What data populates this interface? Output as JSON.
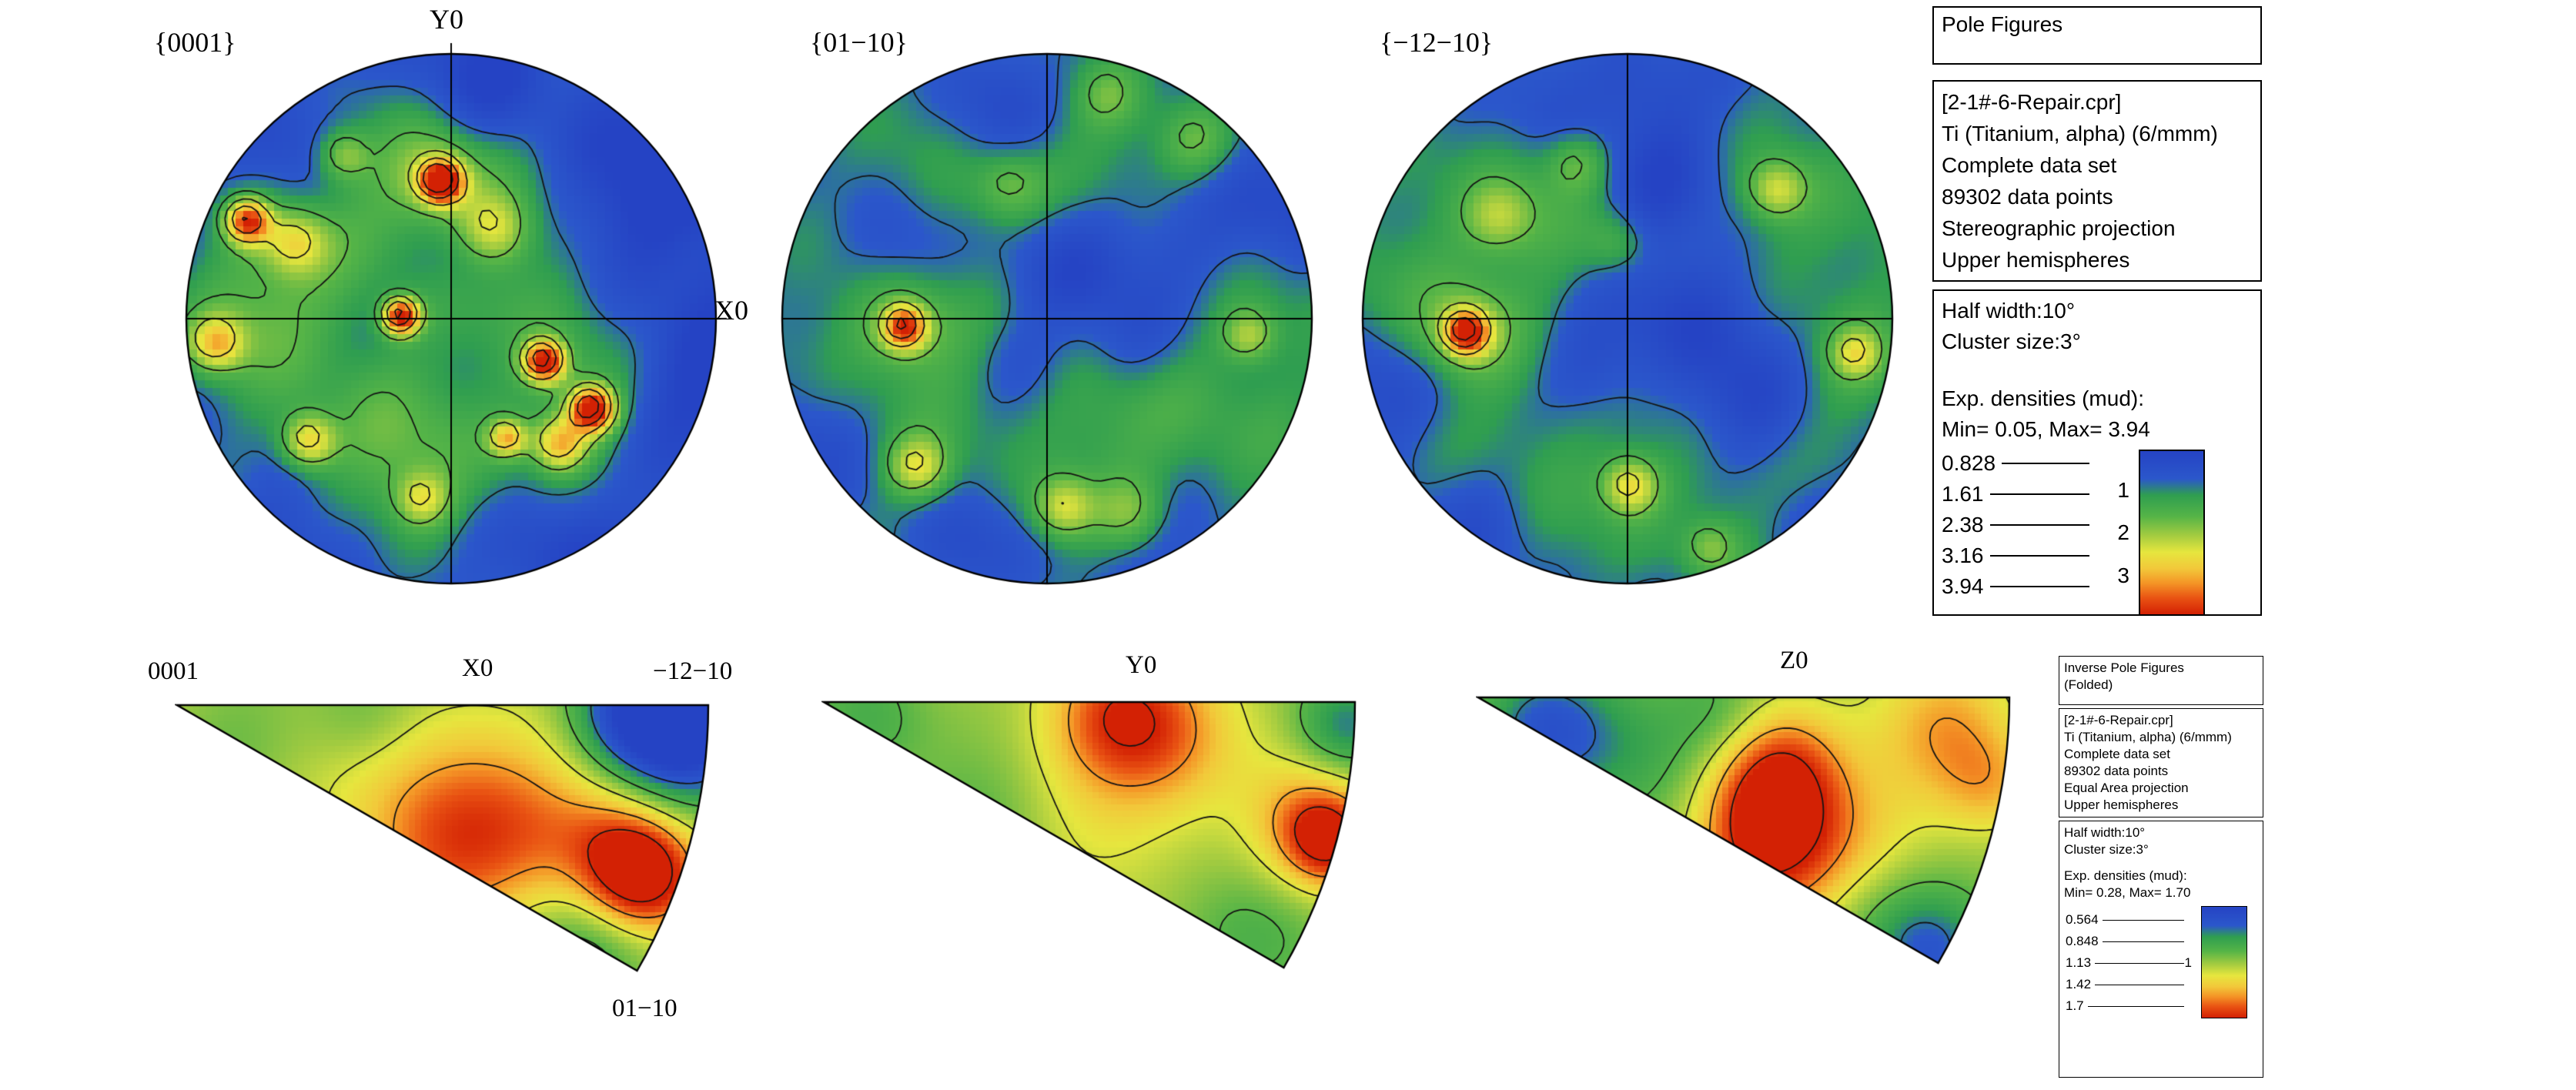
{
  "figures": {
    "pf1_label": "{0001}",
    "pf2_label": "{01−10}",
    "pf3_label": "{−12−10}",
    "axis_y": "Y0",
    "axis_x": "X0",
    "ipf1_title": "X0",
    "ipf2_title": "Y0",
    "ipf3_title": "Z0",
    "ipf_corner_apex": "0001",
    "ipf_corner_right": "−12−10",
    "ipf_corner_bottom": "01−10"
  },
  "pole_figures_panel": {
    "title": "Pole Figures",
    "dataset": [
      "[2-1#-6-Repair.cpr]",
      "Ti (Titanium, alpha) (6/mmm)",
      "Complete data set",
      "89302 data points",
      "Stereographic projection",
      "Upper hemispheres"
    ],
    "half_width": "Half width:10°",
    "cluster_size": "Cluster size:3°",
    "densities_label": "Exp. densities (mud):",
    "min_max": "Min= 0.05, Max= 3.94",
    "levels": [
      "0.828",
      "1.61",
      "2.38",
      "3.16",
      "3.94"
    ],
    "colorbar_ticks": [
      "1",
      "2",
      "3"
    ]
  },
  "ipf_panel": {
    "title_line1": "Inverse Pole Figures",
    "title_line2": "(Folded)",
    "dataset": [
      "[2-1#-6-Repair.cpr]",
      "Ti (Titanium, alpha) (6/mmm)",
      "Complete data set",
      "89302 data points",
      "Equal Area projection",
      "Upper hemispheres"
    ],
    "half_width": "Half width:10°",
    "cluster_size": "Cluster size:3°",
    "densities_label": "Exp. densities (mud):",
    "min_max": "Min= 0.28, Max= 1.70",
    "levels": [
      "0.564",
      "0.848",
      "1.13",
      "1.42",
      "1.7"
    ],
    "colorbar_ticks": [
      "1"
    ]
  },
  "colors": {
    "background": "#ffffff",
    "contour_line": "#141414",
    "outline": "#000000",
    "colormap_stops": [
      [
        0.0,
        "#2543c4"
      ],
      [
        0.17,
        "#2b57cb"
      ],
      [
        0.27,
        "#2f9e50"
      ],
      [
        0.4,
        "#55b447"
      ],
      [
        0.52,
        "#a5cc40"
      ],
      [
        0.62,
        "#e6e63e"
      ],
      [
        0.72,
        "#f2c83a"
      ],
      [
        0.81,
        "#f49426"
      ],
      [
        0.9,
        "#e95313"
      ],
      [
        1.0,
        "#d32104"
      ]
    ]
  },
  "chart_data": [
    {
      "id": "pf_0001",
      "type": "heatmap",
      "plot": "pole-figure-contour",
      "title": "{0001}",
      "projection": "Stereographic",
      "hemisphere": "Upper",
      "units": "mud",
      "range": {
        "min": 0.05,
        "max": 3.94
      },
      "contour_levels": [
        0.828,
        1.61,
        2.38,
        3.16,
        3.94
      ],
      "base": 0.5,
      "noise": 0.28,
      "noise_phase": 0,
      "peaks": [
        {
          "x": -0.55,
          "y": -0.25,
          "a": 0.8,
          "s": 0.3
        },
        {
          "x": -0.15,
          "y": -0.6,
          "a": 0.7,
          "s": 0.22
        },
        {
          "x": 0.25,
          "y": -0.2,
          "a": 0.8,
          "s": 0.26
        },
        {
          "x": 0.45,
          "y": 0.35,
          "a": 0.8,
          "s": 0.26
        },
        {
          "x": -0.35,
          "y": 0.45,
          "a": 0.8,
          "s": 0.28
        },
        {
          "x": -0.05,
          "y": 0.65,
          "a": 0.6,
          "s": 0.24
        },
        {
          "x": -0.85,
          "y": 0.0,
          "a": 0.7,
          "s": 0.22
        },
        {
          "x": 0.75,
          "y": -0.45,
          "a": -0.75,
          "s": 0.24
        },
        {
          "x": 0.88,
          "y": 0.25,
          "a": -0.6,
          "s": 0.2
        },
        {
          "x": 0.35,
          "y": 0.78,
          "a": -0.55,
          "s": 0.2
        },
        {
          "x": -0.5,
          "y": 0.82,
          "a": -0.5,
          "s": 0.18
        },
        {
          "x": 0.1,
          "y": -0.92,
          "a": -0.5,
          "s": 0.16
        },
        {
          "x": -0.55,
          "y": -0.62,
          "a": -0.45,
          "s": 0.16
        },
        {
          "x": 0.02,
          "y": -0.25,
          "a": -0.5,
          "s": 0.13
        },
        {
          "x": -0.05,
          "y": -0.53,
          "a": 3.2,
          "s": 0.055
        },
        {
          "x": -0.05,
          "y": -0.53,
          "a": 0.9,
          "s": 0.13
        },
        {
          "x": -0.78,
          "y": -0.38,
          "a": 2.7,
          "s": 0.06
        },
        {
          "x": -0.6,
          "y": -0.3,
          "a": 1.2,
          "s": 0.08
        },
        {
          "x": -0.2,
          "y": -0.02,
          "a": 3.1,
          "s": 0.05
        },
        {
          "x": 0.34,
          "y": 0.15,
          "a": 3.1,
          "s": 0.055
        },
        {
          "x": 0.52,
          "y": 0.33,
          "a": 3.3,
          "s": 0.06
        },
        {
          "x": 0.4,
          "y": 0.46,
          "a": 1.8,
          "s": 0.07
        },
        {
          "x": -0.55,
          "y": 0.45,
          "a": 1.7,
          "s": 0.07
        },
        {
          "x": 0.2,
          "y": 0.44,
          "a": 1.8,
          "s": 0.05
        },
        {
          "x": -0.9,
          "y": 0.08,
          "a": 1.6,
          "s": 0.07
        },
        {
          "x": -0.42,
          "y": -0.63,
          "a": 1.1,
          "s": 0.07
        },
        {
          "x": 0.15,
          "y": -0.35,
          "a": 1.2,
          "s": 0.09
        },
        {
          "x": -0.12,
          "y": 0.67,
          "a": 1.2,
          "s": 0.07
        }
      ]
    },
    {
      "id": "pf_0110",
      "type": "heatmap",
      "plot": "pole-figure-contour",
      "title": "{01−10}",
      "projection": "Stereographic",
      "hemisphere": "Upper",
      "units": "mud",
      "range": {
        "min": 0.05,
        "max": 3.94
      },
      "contour_levels": [
        0.828,
        1.61,
        2.38,
        3.16,
        3.94
      ],
      "base": 0.8,
      "noise": 0.26,
      "noise_phase": 2.1,
      "peaks": [
        {
          "x": -0.6,
          "y": 0.15,
          "a": 0.5,
          "s": 0.28
        },
        {
          "x": 0.3,
          "y": -0.55,
          "a": 0.5,
          "s": 0.26
        },
        {
          "x": -0.35,
          "y": -0.5,
          "a": 0.45,
          "s": 0.24
        },
        {
          "x": 0.1,
          "y": 0.35,
          "a": 0.45,
          "s": 0.26
        },
        {
          "x": 0.6,
          "y": 0.45,
          "a": 0.5,
          "s": 0.25
        },
        {
          "x": 0.78,
          "y": -0.05,
          "a": 0.4,
          "s": 0.2
        },
        {
          "x": 0.05,
          "y": -0.25,
          "a": -0.75,
          "s": 0.18
        },
        {
          "x": 0.5,
          "y": -0.28,
          "a": -0.6,
          "s": 0.18
        },
        {
          "x": -0.2,
          "y": -0.78,
          "a": -0.55,
          "s": 0.16
        },
        {
          "x": 0.85,
          "y": -0.5,
          "a": -0.55,
          "s": 0.18
        },
        {
          "x": -0.58,
          "y": -0.3,
          "a": -0.55,
          "s": 0.15
        },
        {
          "x": -0.9,
          "y": 0.42,
          "a": -0.5,
          "s": 0.18
        },
        {
          "x": 0.32,
          "y": 0.08,
          "a": -0.5,
          "s": 0.14
        },
        {
          "x": -0.12,
          "y": 0.14,
          "a": -0.45,
          "s": 0.13
        },
        {
          "x": 0.55,
          "y": 0.8,
          "a": -0.4,
          "s": 0.16
        },
        {
          "x": -0.3,
          "y": 0.85,
          "a": -0.35,
          "s": 0.15
        },
        {
          "x": -0.55,
          "y": 0.02,
          "a": 2.3,
          "s": 0.055
        },
        {
          "x": -0.55,
          "y": 0.02,
          "a": 0.8,
          "s": 0.12
        },
        {
          "x": -0.5,
          "y": 0.55,
          "a": 1.4,
          "s": 0.08
        },
        {
          "x": 0.05,
          "y": 0.7,
          "a": 1.3,
          "s": 0.08
        },
        {
          "x": 0.75,
          "y": 0.05,
          "a": 1.1,
          "s": 0.07
        },
        {
          "x": 0.3,
          "y": 0.72,
          "a": 0.8,
          "s": 0.09
        },
        {
          "x": -0.15,
          "y": -0.52,
          "a": 0.7,
          "s": 0.09
        },
        {
          "x": 0.55,
          "y": -0.68,
          "a": 0.7,
          "s": 0.09
        },
        {
          "x": 0.22,
          "y": -0.85,
          "a": 0.6,
          "s": 0.08
        }
      ]
    },
    {
      "id": "pf_1210",
      "type": "heatmap",
      "plot": "pole-figure-contour",
      "title": "{−12−10}",
      "projection": "Stereographic",
      "hemisphere": "Upper",
      "units": "mud",
      "range": {
        "min": 0.05,
        "max": 3.94
      },
      "contour_levels": [
        0.828,
        1.61,
        2.38,
        3.16,
        3.94
      ],
      "base": 0.8,
      "noise": 0.26,
      "noise_phase": 4.2,
      "peaks": [
        {
          "x": -0.4,
          "y": -0.45,
          "a": 0.5,
          "s": 0.26
        },
        {
          "x": -0.78,
          "y": -0.12,
          "a": 0.45,
          "s": 0.22
        },
        {
          "x": 0.7,
          "y": -0.4,
          "a": 0.5,
          "s": 0.24
        },
        {
          "x": 0.85,
          "y": 0.2,
          "a": 0.45,
          "s": 0.2
        },
        {
          "x": -0.35,
          "y": 0.5,
          "a": 0.5,
          "s": 0.26
        },
        {
          "x": 0.3,
          "y": 0.68,
          "a": 0.45,
          "s": 0.22
        },
        {
          "x": 0.1,
          "y": -0.55,
          "a": -0.6,
          "s": 0.18
        },
        {
          "x": 0.22,
          "y": -0.05,
          "a": -0.7,
          "s": 0.18
        },
        {
          "x": 0.45,
          "y": 0.32,
          "a": -0.6,
          "s": 0.18
        },
        {
          "x": -0.15,
          "y": 0.2,
          "a": -0.5,
          "s": 0.14
        },
        {
          "x": 0.02,
          "y": -0.88,
          "a": -0.45,
          "s": 0.14
        },
        {
          "x": -0.6,
          "y": 0.72,
          "a": -0.5,
          "s": 0.17
        },
        {
          "x": -0.95,
          "y": 0.28,
          "a": -0.45,
          "s": 0.16
        },
        {
          "x": -0.3,
          "y": -0.82,
          "a": -0.4,
          "s": 0.14
        },
        {
          "x": 0.68,
          "y": 0.78,
          "a": -0.35,
          "s": 0.14
        },
        {
          "x": -0.62,
          "y": 0.04,
          "a": 2.6,
          "s": 0.055
        },
        {
          "x": -0.62,
          "y": 0.04,
          "a": 0.9,
          "s": 0.12
        },
        {
          "x": 0.0,
          "y": 0.62,
          "a": 1.5,
          "s": 0.075
        },
        {
          "x": 0.55,
          "y": -0.5,
          "a": 1.2,
          "s": 0.075
        },
        {
          "x": 0.85,
          "y": 0.12,
          "a": 1.2,
          "s": 0.065
        },
        {
          "x": -0.5,
          "y": -0.4,
          "a": 0.9,
          "s": 0.09
        },
        {
          "x": 0.3,
          "y": 0.85,
          "a": 0.8,
          "s": 0.07
        },
        {
          "x": -0.2,
          "y": -0.6,
          "a": 0.8,
          "s": 0.08
        },
        {
          "x": -0.05,
          "y": -0.3,
          "a": 0.6,
          "s": 0.08
        }
      ]
    },
    {
      "id": "ipf_x0",
      "type": "heatmap",
      "plot": "inverse-pole-figure-contour",
      "sample_direction": "X0",
      "corners": [
        "0001",
        "−12−10",
        "01−10"
      ],
      "projection": "Equal Area",
      "hemisphere": "Upper",
      "sector_deg": 30,
      "units": "mud",
      "range": {
        "min": 0.28,
        "max": 1.7
      },
      "contour_levels": [
        0.564,
        0.848,
        1.13,
        1.42,
        1.7
      ],
      "base": 1.02,
      "noise": 0.07,
      "noise_phase": 0.8,
      "peaks": [
        {
          "x": 0.95,
          "y": 0.04,
          "a": -0.85,
          "s": 0.1
        },
        {
          "x": 0.84,
          "y": 0.0,
          "a": -0.4,
          "s": 0.08
        },
        {
          "x": 0.87,
          "y": 0.32,
          "a": 0.78,
          "s": 0.07
        },
        {
          "x": 0.82,
          "y": 0.26,
          "a": 0.42,
          "s": 0.09
        },
        {
          "x": 0.62,
          "y": 0.22,
          "a": 0.38,
          "s": 0.12
        },
        {
          "x": 0.48,
          "y": 0.28,
          "a": 0.3,
          "s": 0.11
        },
        {
          "x": 0.4,
          "y": 0.1,
          "a": 0.18,
          "s": 0.12
        },
        {
          "x": 0.78,
          "y": 0.44,
          "a": -0.28,
          "s": 0.09
        },
        {
          "x": 0.35,
          "y": 0.02,
          "a": -0.22,
          "s": 0.08
        },
        {
          "x": 0.12,
          "y": 0.06,
          "a": -0.12,
          "s": 0.09
        }
      ]
    },
    {
      "id": "ipf_y0",
      "type": "heatmap",
      "plot": "inverse-pole-figure-contour",
      "sample_direction": "Y0",
      "corners": [
        "0001",
        "−12−10",
        "01−10"
      ],
      "projection": "Equal Area",
      "hemisphere": "Upper",
      "sector_deg": 30,
      "units": "mud",
      "range": {
        "min": 0.28,
        "max": 1.7
      },
      "contour_levels": [
        0.564,
        0.848,
        1.13,
        1.42,
        1.7
      ],
      "base": 1.02,
      "noise": 0.07,
      "noise_phase": 2.9,
      "peaks": [
        {
          "x": 0.55,
          "y": 0.02,
          "a": 0.5,
          "s": 0.09
        },
        {
          "x": 0.66,
          "y": 0.07,
          "a": 0.32,
          "s": 0.1
        },
        {
          "x": 0.95,
          "y": 0.26,
          "a": 0.68,
          "s": 0.06
        },
        {
          "x": 0.9,
          "y": 0.21,
          "a": 0.34,
          "s": 0.08
        },
        {
          "x": 0.98,
          "y": 0.04,
          "a": -0.5,
          "s": 0.07
        },
        {
          "x": 0.3,
          "y": 0.24,
          "a": -0.25,
          "s": 0.12
        },
        {
          "x": 0.08,
          "y": 0.03,
          "a": -0.22,
          "s": 0.08
        },
        {
          "x": 0.8,
          "y": 0.44,
          "a": -0.28,
          "s": 0.1
        },
        {
          "x": 0.5,
          "y": 0.2,
          "a": 0.18,
          "s": 0.14
        }
      ]
    },
    {
      "id": "ipf_z0",
      "type": "heatmap",
      "plot": "inverse-pole-figure-contour",
      "sample_direction": "Z0",
      "corners": [
        "0001",
        "−12−10",
        "01−10"
      ],
      "projection": "Equal Area",
      "hemisphere": "Upper",
      "sector_deg": 30,
      "units": "mud",
      "range": {
        "min": 0.28,
        "max": 1.7
      },
      "contour_levels": [
        0.564,
        0.848,
        1.13,
        1.42,
        1.7
      ],
      "base": 1.0,
      "noise": 0.07,
      "noise_phase": 5.0,
      "peaks": [
        {
          "x": 0.55,
          "y": 0.2,
          "a": 0.62,
          "s": 0.09
        },
        {
          "x": 0.53,
          "y": 0.3,
          "a": 0.48,
          "s": 0.09
        },
        {
          "x": 0.57,
          "y": 0.11,
          "a": 0.34,
          "s": 0.08
        },
        {
          "x": 0.88,
          "y": 0.05,
          "a": 0.34,
          "s": 0.09
        },
        {
          "x": 0.96,
          "y": 0.16,
          "a": 0.3,
          "s": 0.07
        },
        {
          "x": 0.12,
          "y": 0.05,
          "a": -0.5,
          "s": 0.09
        },
        {
          "x": 0.3,
          "y": 0.1,
          "a": -0.22,
          "s": 0.1
        },
        {
          "x": 0.45,
          "y": 0.02,
          "a": -0.2,
          "s": 0.07
        },
        {
          "x": 0.78,
          "y": 0.43,
          "a": -0.25,
          "s": 0.09
        },
        {
          "x": 0.86,
          "y": 0.48,
          "a": -0.3,
          "s": 0.07
        },
        {
          "x": 0.7,
          "y": 0.28,
          "a": 0.2,
          "s": 0.1
        }
      ]
    }
  ]
}
